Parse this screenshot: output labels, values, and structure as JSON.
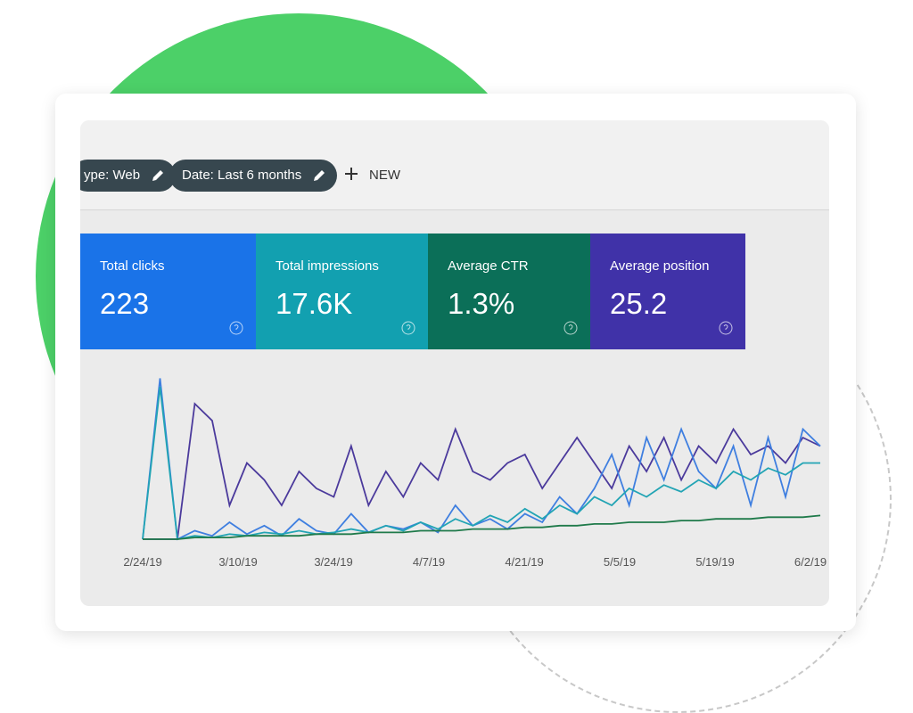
{
  "filters": [
    "ype: Web",
    "Date: Last 6 months"
  ],
  "new_button": "NEW",
  "metrics": [
    {
      "label": "Total clicks",
      "value": "223"
    },
    {
      "label": "Total impressions",
      "value": "17.6K"
    },
    {
      "label": "Average CTR",
      "value": "1.3%"
    },
    {
      "label": "Average position",
      "value": "25.2"
    }
  ],
  "chart": {
    "type": "line",
    "x_labels": [
      "2/24/19",
      "3/10/19",
      "3/24/19",
      "4/7/19",
      "4/21/19",
      "5/5/19",
      "5/19/19",
      "6/2/19"
    ],
    "series": [
      {
        "color": "#4b3a9c",
        "values": [
          0,
          0,
          0,
          80,
          70,
          20,
          45,
          35,
          20,
          40,
          30,
          25,
          55,
          20,
          40,
          25,
          45,
          35,
          65,
          40,
          35,
          45,
          50,
          30,
          45,
          60,
          45,
          30,
          55,
          40,
          60,
          35,
          55,
          45,
          65,
          50,
          55,
          45,
          60,
          55
        ]
      },
      {
        "color": "#3f7fe0",
        "values": [
          0,
          95,
          0,
          5,
          2,
          10,
          3,
          8,
          2,
          12,
          5,
          3,
          15,
          4,
          8,
          6,
          10,
          4,
          20,
          8,
          12,
          6,
          15,
          10,
          25,
          15,
          30,
          50,
          20,
          60,
          35,
          65,
          40,
          30,
          55,
          20,
          60,
          25,
          65,
          55
        ]
      },
      {
        "color": "#22a4b4",
        "values": [
          0,
          90,
          0,
          2,
          1,
          3,
          2,
          4,
          3,
          5,
          3,
          4,
          6,
          4,
          8,
          5,
          10,
          6,
          12,
          8,
          14,
          10,
          18,
          12,
          20,
          15,
          25,
          20,
          30,
          25,
          32,
          28,
          35,
          30,
          40,
          35,
          42,
          38,
          45,
          45
        ]
      },
      {
        "color": "#1f7a4a",
        "values": [
          0,
          0,
          0,
          1,
          1,
          1,
          2,
          2,
          2,
          2,
          3,
          3,
          3,
          4,
          4,
          4,
          5,
          5,
          5,
          6,
          6,
          6,
          7,
          7,
          8,
          8,
          9,
          9,
          10,
          10,
          10,
          11,
          11,
          12,
          12,
          12,
          13,
          13,
          13,
          14
        ]
      }
    ]
  }
}
